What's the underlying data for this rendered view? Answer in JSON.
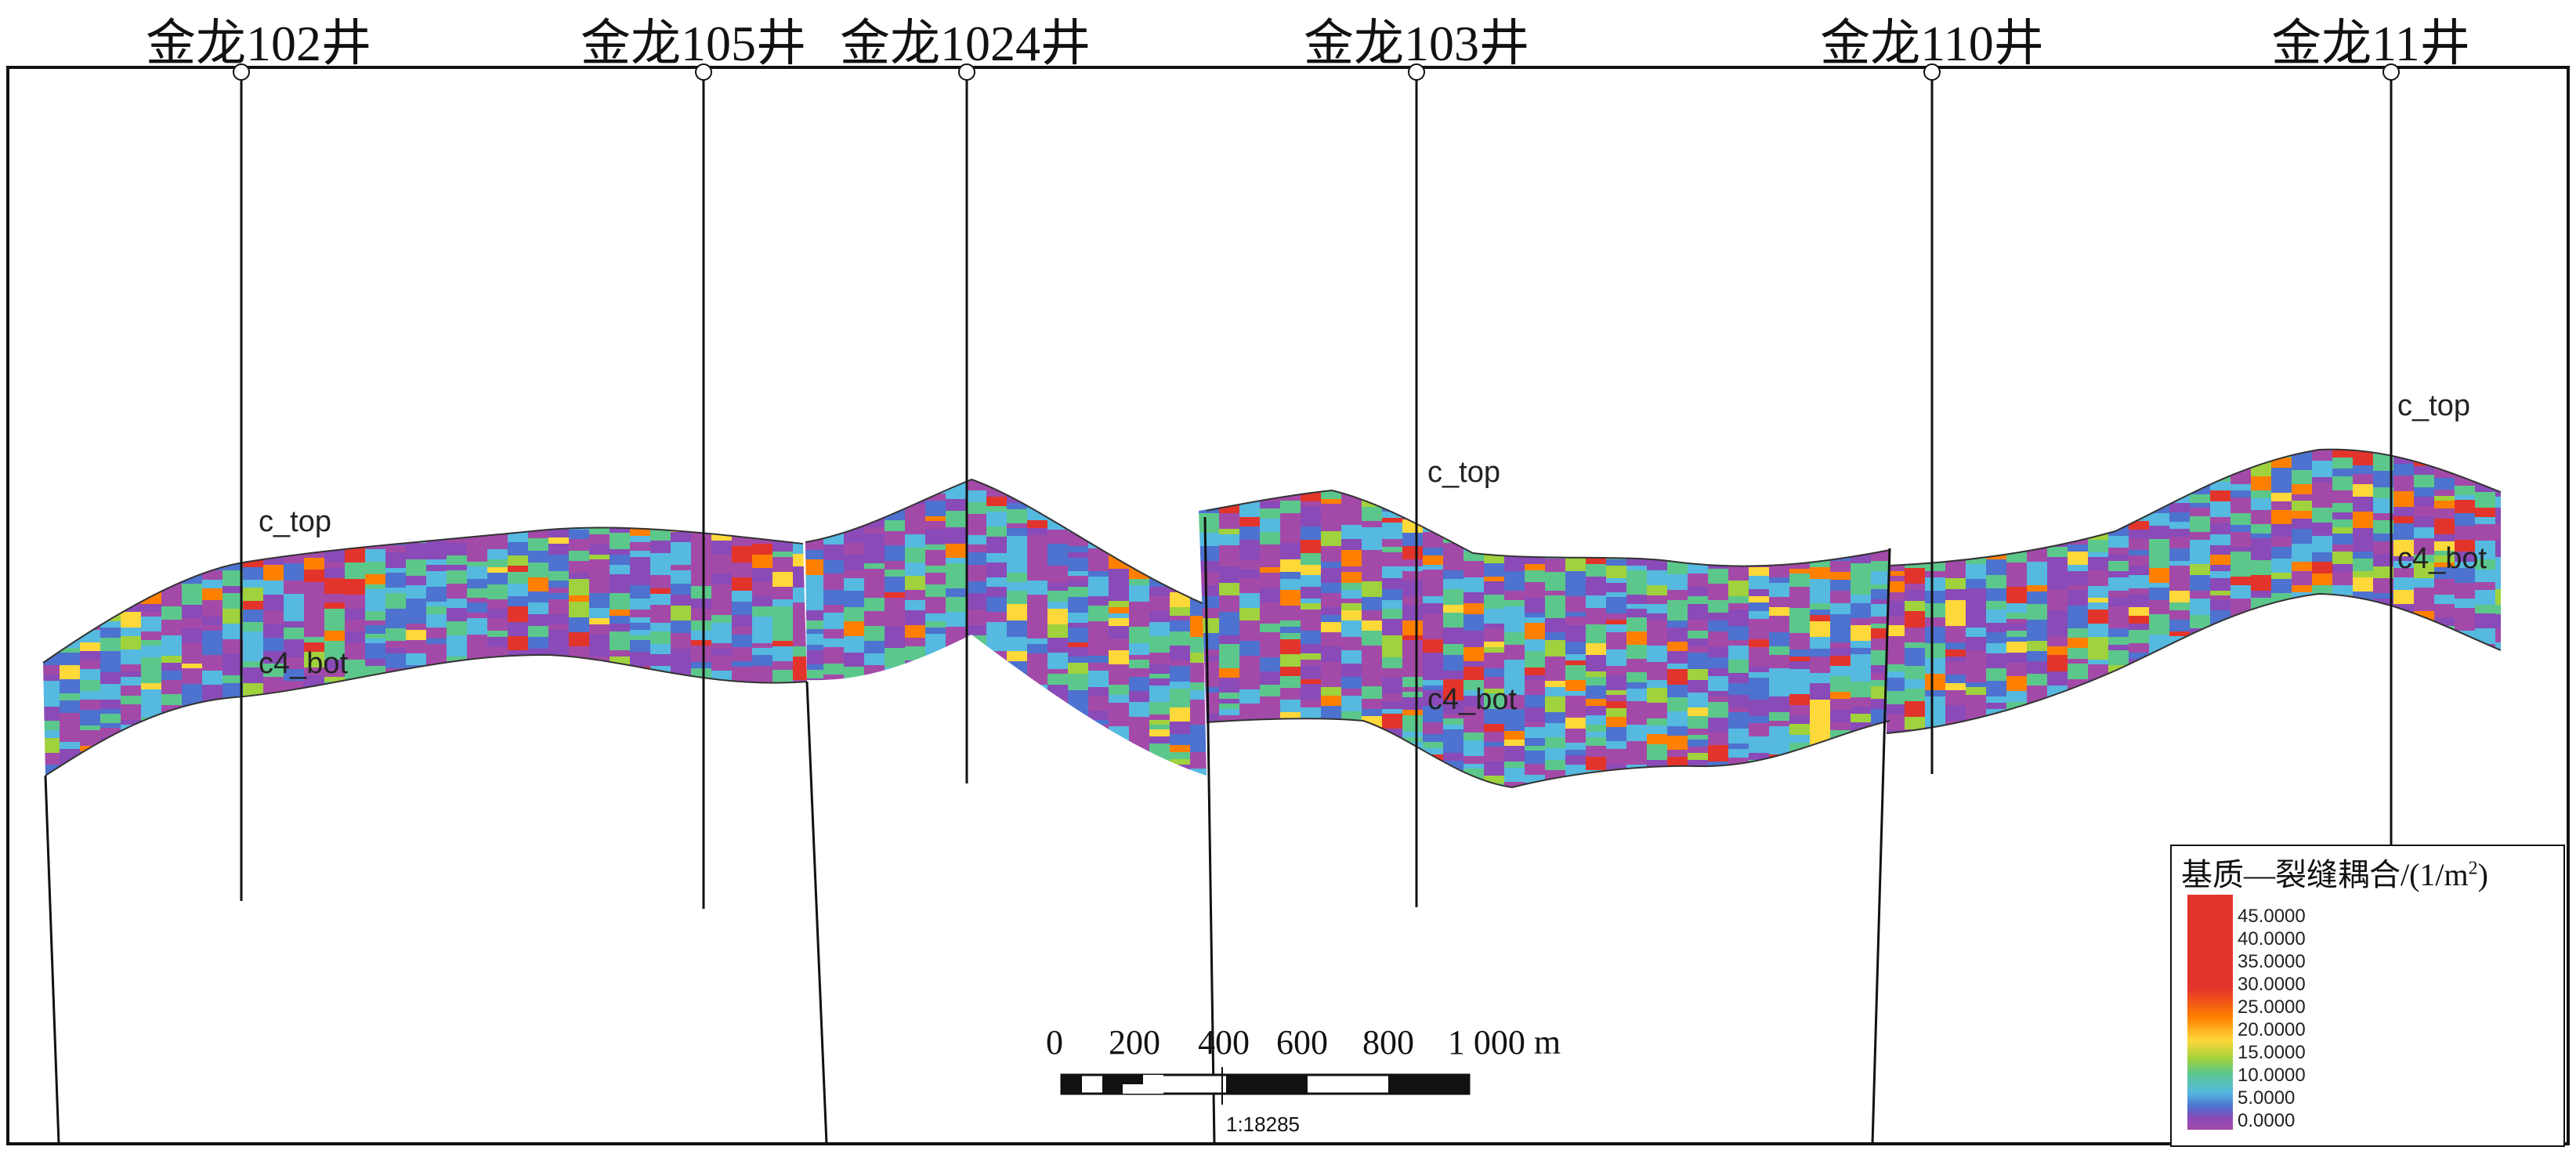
{
  "wells": [
    {
      "name": "金龙102井"
    },
    {
      "name": "金龙105井"
    },
    {
      "name": "金龙1024井"
    },
    {
      "name": "金龙103井"
    },
    {
      "name": "金龙110井"
    },
    {
      "name": "金龙11井"
    }
  ],
  "horizons": {
    "top": "c_top",
    "bottom": "c4_bot"
  },
  "scale_bar": {
    "labels": [
      "0",
      "200",
      "400",
      "600",
      "800",
      "1 000 m"
    ],
    "ratio": "1:18285"
  },
  "legend": {
    "title": "基质—裂缝耦合/(1/m",
    "title_sup": "2",
    "title_end": ")",
    "ticks": [
      "45.0000",
      "40.0000",
      "35.0000",
      "30.0000",
      "25.0000",
      "20.0000",
      "15.0000",
      "10.0000",
      "5.0000",
      "0.0000"
    ],
    "colors": [
      "#a34aa8",
      "#8a4ab8",
      "#4d72cf",
      "#55b9e0",
      "#5cc78b",
      "#9fd23d",
      "#ffd83a",
      "#ff7f00",
      "#e3342b"
    ]
  }
}
